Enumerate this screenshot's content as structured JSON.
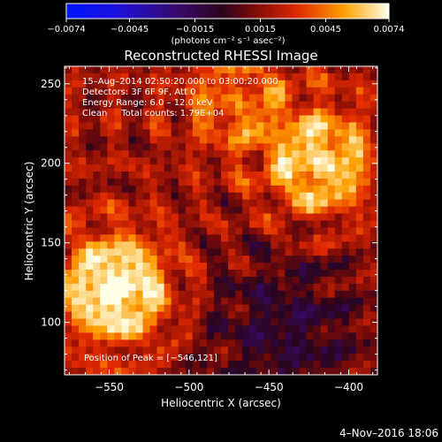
{
  "chart_data": {
    "type": "heatmap",
    "title": "Reconstructed RHESSI Image",
    "xlabel": "Heliocentric X (arcsec)",
    "ylabel": "Heliocentric Y (arcsec)",
    "xlim": [
      -578,
      -382
    ],
    "ylim": [
      67,
      261
    ],
    "xticks": [
      -550,
      -500,
      -450,
      -400
    ],
    "xtick_labels": [
      "−550",
      "−500",
      "−450",
      "−400"
    ],
    "yticks": [
      100,
      150,
      200,
      250
    ],
    "ytick_labels": [
      "100",
      "150",
      "200",
      "250"
    ],
    "colorbar": {
      "min": -0.0074,
      "max": 0.0074,
      "ticks": [
        -0.0074,
        -0.0045,
        -0.0015,
        0.0015,
        0.0045,
        0.0074
      ],
      "tick_labels": [
        "−0.0074",
        "−0.0045",
        "−0.0015",
        "0.0015",
        "0.0045",
        "0.0074"
      ],
      "unit_label": "(photons cm⁻² s⁻¹ asec⁻²)"
    },
    "annotations": {
      "time_range": "15–Aug–2014 02:50:20.000 to 03:00:20.000",
      "detectors": "Detectors: 3F 6F 9F, Att 0",
      "energy_range": "Energy Range: 6.0 – 12.0 keV",
      "method_counts": "Clean     Total counts: 1.79E+04",
      "peak": "Position of Peak = [−546,121]"
    },
    "sources": [
      {
        "x": -546,
        "y": 121,
        "intensity": 0.0074
      },
      {
        "x": -418,
        "y": 200,
        "intensity": 0.0058
      },
      {
        "x": -470,
        "y": 240,
        "intensity": 0.0032
      }
    ],
    "negative_region": {
      "x": -440,
      "y": 95,
      "intensity": -0.0025
    }
  },
  "footer": {
    "date": "4–Nov–2016 18:06"
  },
  "colors": {
    "background": "#000000",
    "axis": "#ffffff"
  }
}
